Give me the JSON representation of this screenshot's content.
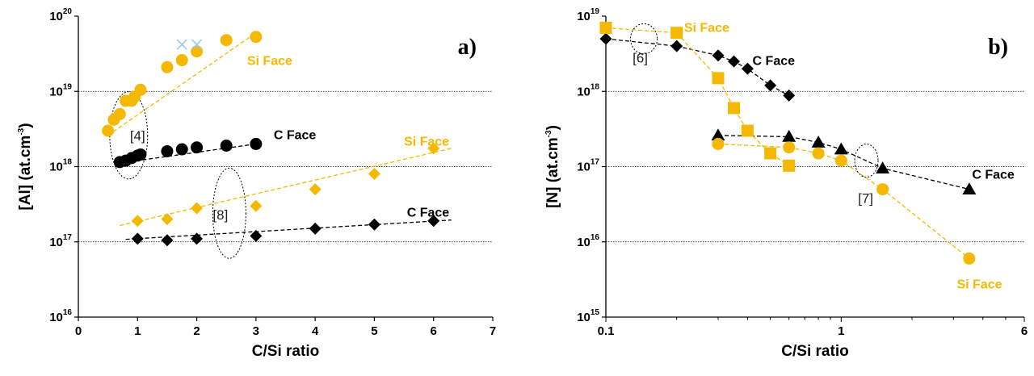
{
  "chart_data": [
    {
      "type": "scatter",
      "panel_label": "a)",
      "xlabel": "C/Si ratio",
      "ylabel": "[Al] (at.cm-3)",
      "ylabel_main": "[Al] (at.cm",
      "ylabel_sup": "-3",
      "ylabel_close": ")",
      "xlim": [
        0,
        7
      ],
      "x_ticks": [
        "0",
        "1",
        "2",
        "3",
        "4",
        "5",
        "6",
        "7"
      ],
      "y_scale": "log",
      "ylim": [
        1e+16,
        1e+20
      ],
      "y_tick_exponents": [
        "16",
        "17",
        "18",
        "19",
        "20"
      ],
      "y_tick_base": "10",
      "grid": "dotted horizontal at 1e17, 1e18, 1e19",
      "colors": {
        "si_face": "#f5b800",
        "c_face": "#000000",
        "marker_x": "#9ec9e8"
      },
      "series": [
        {
          "name": "Si Face",
          "marker": "circle",
          "color": "#f5b800",
          "x": [
            0.5,
            0.6,
            0.7,
            0.8,
            0.9,
            0.95,
            1.05,
            1.5,
            1.75,
            2.0,
            2.5,
            3.0
          ],
          "y": [
            3e+18,
            4.2e+18,
            5e+18,
            7.5e+18,
            7.5e+18,
            8.5e+18,
            1.05e+19,
            2.1e+19,
            2.6e+19,
            3.4e+19,
            4.8e+19,
            5.3e+19
          ]
        },
        {
          "name": "Si Face (x markers)",
          "marker": "x",
          "color": "#9ec9e8",
          "x": [
            1.75,
            2.0
          ],
          "y": [
            4.2e+19,
            4.2e+19
          ]
        },
        {
          "name": "C Face",
          "marker": "circle",
          "color": "#000000",
          "x": [
            0.7,
            0.8,
            0.9,
            1.0,
            1.05,
            1.5,
            1.75,
            2.0,
            2.5,
            3.0
          ],
          "y": [
            1.15e+18,
            1.2e+18,
            1.3e+18,
            1.4e+18,
            1.45e+18,
            1.6e+18,
            1.7e+18,
            1.8e+18,
            1.9e+18,
            2e+18
          ]
        },
        {
          "name": "Si Face",
          "marker": "diamond",
          "color": "#f5b800",
          "x": [
            1.0,
            1.5,
            2.0,
            3.0,
            4.0,
            5.0,
            6.0
          ],
          "y": [
            1.9e+17,
            2e+17,
            2.8e+17,
            3e+17,
            5e+17,
            8e+17,
            1.75e+18
          ]
        },
        {
          "name": "C Face",
          "marker": "diamond",
          "color": "#000000",
          "x": [
            1.0,
            1.5,
            2.0,
            3.0,
            4.0,
            5.0,
            6.0
          ],
          "y": [
            1.1e+17,
            1.05e+17,
            1.1e+17,
            1.2e+17,
            1.5e+17,
            1.7e+17,
            1.9e+17
          ]
        }
      ],
      "trendlines": [
        {
          "color": "#f5b800",
          "x": [
            0.5,
            3.0
          ],
          "y": [
            2.6e+18,
            6e+19
          ]
        },
        {
          "color": "#000000",
          "x": [
            0.65,
            3.1
          ],
          "y": [
            1.1e+18,
            2.05e+18
          ]
        },
        {
          "color": "#f5b800",
          "x": [
            0.7,
            6.3
          ],
          "y": [
            1.65e+17,
            1.75e+18
          ]
        },
        {
          "color": "#000000",
          "x": [
            0.8,
            6.3
          ],
          "y": [
            1.08e+17,
            1.95e+17
          ]
        }
      ],
      "annotations": [
        {
          "text": "Si Face",
          "color": "#f5b800",
          "x": 2.85,
          "y": 2.6e+19
        },
        {
          "text": "C Face",
          "color": "#000000",
          "x": 3.3,
          "y": 2.7e+18
        },
        {
          "text": "Si Face",
          "color": "#f5b800",
          "x": 5.5,
          "y": 2.2e+18
        },
        {
          "text": "C Face",
          "color": "#000000",
          "x": 5.55,
          "y": 2.5e+17
        }
      ],
      "references": [
        {
          "text": "[4]",
          "x": 1.0,
          "y": 2.6e+18,
          "ellipse_x": 0.85,
          "ellipse_y": 2.6e+18,
          "ellipse_dx": 0.32,
          "ellipse_decades": 0.58
        },
        {
          "text": "[8]",
          "x": 2.4,
          "y": 2.3e+17,
          "ellipse_x": 2.55,
          "ellipse_y": 2.4e+17,
          "ellipse_dx": 0.28,
          "ellipse_decades": 0.6
        }
      ]
    },
    {
      "type": "line",
      "panel_label": "b)",
      "xlabel": "C/Si ratio",
      "ylabel": "[N] (at.cm-3)",
      "ylabel_main": "[N] (at.cm",
      "ylabel_sup": "-3",
      "ylabel_close": ")",
      "x_scale": "log",
      "xlim": [
        0.1,
        6
      ],
      "x_ticks": [
        {
          "label": "0.1",
          "value": 0.1
        },
        {
          "label": "1",
          "value": 1
        },
        {
          "label": "6",
          "value": 6
        }
      ],
      "y_scale": "log",
      "ylim": [
        1000000000000000.0,
        1e+19
      ],
      "y_tick_exponents": [
        "15",
        "16",
        "17",
        "18",
        "19"
      ],
      "y_tick_base": "10",
      "grid": "dotted horizontal at 1e16, 1e17, 1e18",
      "colors": {
        "si_face": "#f5b800",
        "c_face": "#000000"
      },
      "series": [
        {
          "name": "C Face",
          "marker": "diamond",
          "color": "#000000",
          "x": [
            0.1,
            0.2,
            0.3,
            0.35,
            0.4,
            0.5,
            0.6
          ],
          "y": [
            5e+18,
            4e+18,
            3e+18,
            2.5e+18,
            2e+18,
            1.2e+18,
            8.8e+17
          ]
        },
        {
          "name": "Si Face",
          "marker": "square",
          "color": "#f5b800",
          "x": [
            0.1,
            0.2,
            0.3,
            0.35,
            0.4,
            0.5,
            0.6
          ],
          "y": [
            7e+18,
            6e+18,
            1.5e+18,
            6e+17,
            3e+17,
            1.5e+17,
            1.03e+17
          ]
        },
        {
          "name": "C Face",
          "marker": "triangle",
          "color": "#000000",
          "x": [
            0.3,
            0.6,
            0.8,
            1.0,
            1.5,
            3.5
          ],
          "y": [
            2.6e+17,
            2.5e+17,
            2.1e+17,
            1.7e+17,
            9.5e+16,
            5e+16
          ]
        },
        {
          "name": "Si Face",
          "marker": "circle",
          "color": "#f5b800",
          "x": [
            0.3,
            0.6,
            0.8,
            1.0,
            1.5,
            3.5
          ],
          "y": [
            2e+17,
            1.8e+17,
            1.5e+17,
            1.2e+17,
            5e+16,
            6000000000000000.0
          ]
        }
      ],
      "annotations": [
        {
          "text": "Si Face",
          "color": "#f5b800",
          "x": 0.215,
          "y": 7.2e+18
        },
        {
          "text": "C Face",
          "color": "#000000",
          "x": 0.42,
          "y": 2.6e+18
        },
        {
          "text": "C Face",
          "color": "#000000",
          "x": 3.6,
          "y": 8e+16
        },
        {
          "text": "Si Face",
          "color": "#f5b800",
          "x": 3.1,
          "y": 2800000000000000.0
        }
      ],
      "references": [
        {
          "text": "[6]",
          "x": 0.14,
          "y": 2.8e+18,
          "ellipse_x": 0.145,
          "ellipse_y": 5e+18,
          "ellipse_dx_frac": 0.032,
          "ellipse_decades": 0.2
        },
        {
          "text": "[7]",
          "x": 1.27,
          "y": 3.8e+16,
          "ellipse_x": 1.28,
          "ellipse_y": 1.2e+17,
          "ellipse_dx_frac": 0.028,
          "ellipse_decades": 0.22
        }
      ]
    }
  ]
}
